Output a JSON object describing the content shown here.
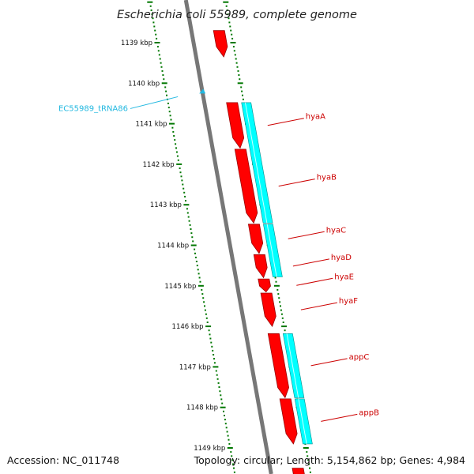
{
  "title": "Escherichia coli 55989, complete genome",
  "ticks": [
    {
      "kbp": 1139,
      "label": "1139 kbp"
    },
    {
      "kbp": 1140,
      "label": "1140 kbp"
    },
    {
      "kbp": 1141,
      "label": "1141 kbp"
    },
    {
      "kbp": 1142,
      "label": "1142 kbp"
    },
    {
      "kbp": 1143,
      "label": "1143 kbp"
    },
    {
      "kbp": 1144,
      "label": "1144 kbp"
    },
    {
      "kbp": 1145,
      "label": "1145 kbp"
    },
    {
      "kbp": 1146,
      "label": "1146 kbp"
    },
    {
      "kbp": 1147,
      "label": "1147 kbp"
    },
    {
      "kbp": 1148,
      "label": "1148 kbp"
    },
    {
      "kbp": 1149,
      "label": "1149 kbp"
    }
  ],
  "trna": {
    "name": "EC55989_tRNA86",
    "kbp": 1140.1
  },
  "genes": [
    {
      "name": "",
      "start": 1138.7,
      "end": 1139.35
    },
    {
      "name": "hyaA",
      "start": 1140.48,
      "end": 1141.6
    },
    {
      "name": "hyaB",
      "start": 1141.63,
      "end": 1143.45
    },
    {
      "name": "hyaC",
      "start": 1143.48,
      "end": 1144.2
    },
    {
      "name": "hyaD",
      "start": 1144.23,
      "end": 1144.8
    },
    {
      "name": "hyaE",
      "start": 1144.83,
      "end": 1145.15
    },
    {
      "name": "hyaF",
      "start": 1145.18,
      "end": 1146.0
    },
    {
      "name": "appC",
      "start": 1146.18,
      "end": 1147.76
    },
    {
      "name": "appB",
      "start": 1147.79,
      "end": 1148.9
    },
    {
      "name": "",
      "start": 1149.5,
      "end": 1149.9
    }
  ],
  "orfs": [
    {
      "start": 1140.48,
      "end": 1143.45
    },
    {
      "start": 1143.48,
      "end": 1144.78
    },
    {
      "start": 1146.18,
      "end": 1147.76
    },
    {
      "start": 1147.79,
      "end": 1148.9
    }
  ],
  "footer": {
    "accession": "Accession: NC_011748",
    "summary": "Topology: circular; Length: 5,154,862 bp; Genes: 4,984"
  },
  "colors": {
    "gene": "#ff0000",
    "gene_edge": "#990000",
    "orf": "#00ffff",
    "orf_edge": "#008b8b",
    "backbone": "#777777",
    "ticks": "#007700",
    "gene_label": "#cc0000",
    "trna": "#22b8e0"
  }
}
